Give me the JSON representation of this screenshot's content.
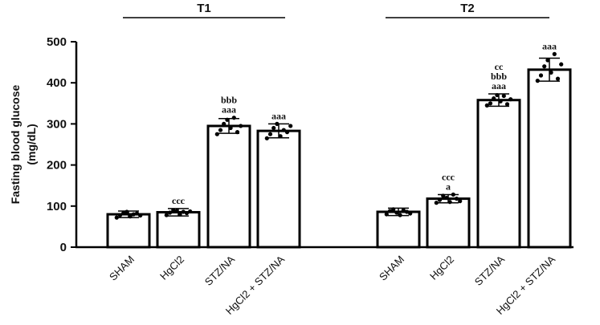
{
  "chart_data": {
    "type": "bar",
    "ylabel_lines": [
      "Fasting blood glucose",
      "(mg/dL)"
    ],
    "ylim": [
      0,
      500
    ],
    "yticks": [
      "0",
      "100",
      "200",
      "300",
      "400",
      "500"
    ],
    "groups": [
      {
        "label": "T1",
        "categories": [
          "SHAM",
          "HgCl2",
          "STZ/NA",
          "HgCl2 + STZ/NA"
        ],
        "values": [
          80,
          85,
          295,
          283
        ],
        "errors": [
          8,
          9,
          18,
          17
        ],
        "annotations": [
          [],
          [
            "ccc"
          ],
          [
            "bbb",
            "aaa"
          ],
          [
            "aaa"
          ]
        ],
        "points": [
          [
            72,
            78,
            83,
            86,
            75,
            80,
            82,
            77
          ],
          [
            78,
            84,
            90,
            88,
            80,
            86,
            83,
            87
          ],
          [
            275,
            285,
            300,
            310,
            290,
            315,
            280,
            295
          ],
          [
            265,
            275,
            290,
            300,
            270,
            285,
            280,
            295
          ]
        ]
      },
      {
        "label": "T2",
        "categories": [
          "SHAM",
          "HgCl2",
          "STZ/NA",
          "HgCl2 + STZ/NA"
        ],
        "values": [
          86,
          118,
          358,
          432
        ],
        "errors": [
          9,
          10,
          15,
          28
        ],
        "annotations": [
          [],
          [
            "ccc",
            "a"
          ],
          [
            "cc",
            "bbb",
            "aaa"
          ],
          [
            "aaa"
          ]
        ],
        "points": [
          [
            80,
            88,
            92,
            84,
            78,
            90,
            86,
            82
          ],
          [
            108,
            115,
            125,
            120,
            110,
            128,
            118,
            112
          ],
          [
            345,
            350,
            362,
            370,
            355,
            368,
            348,
            360
          ],
          [
            405,
            418,
            440,
            455,
            425,
            470,
            410,
            445
          ]
        ]
      }
    ],
    "grid": false,
    "legend": "none"
  }
}
